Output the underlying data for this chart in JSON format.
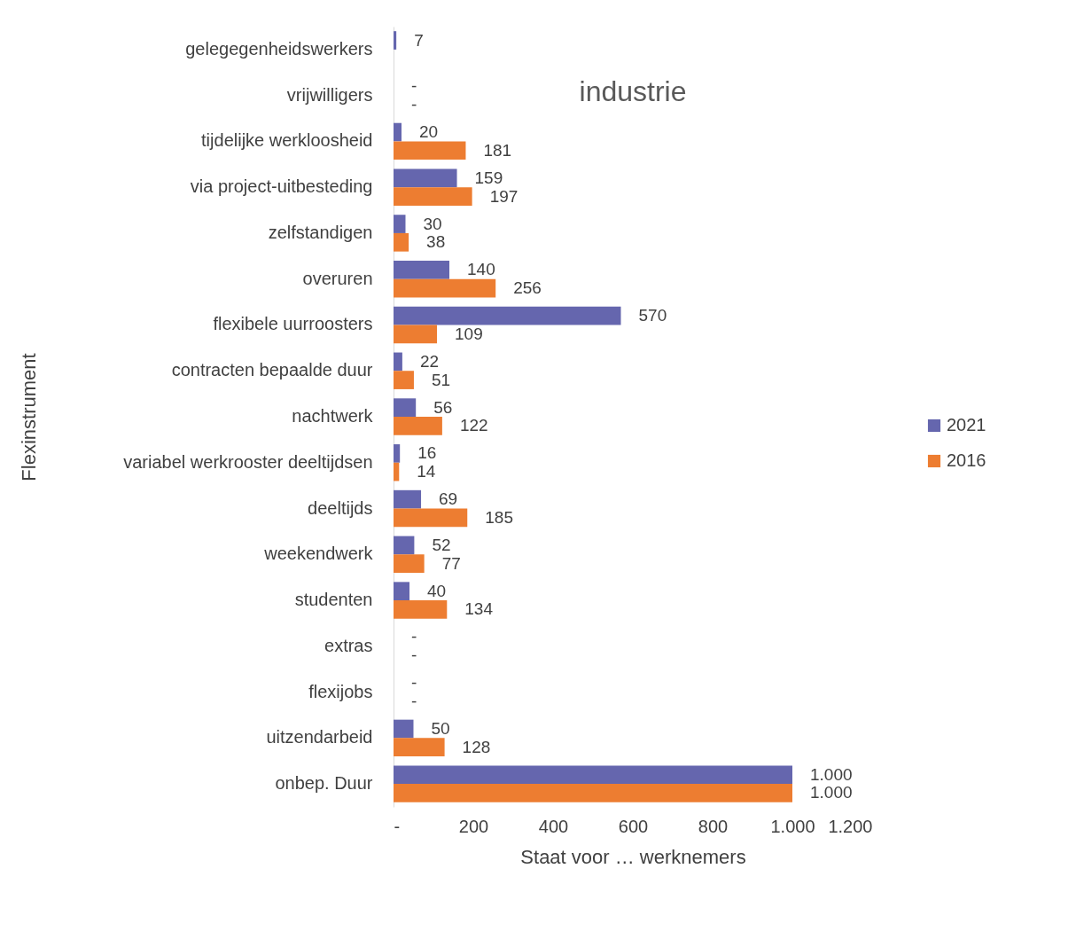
{
  "chart_data": {
    "type": "bar",
    "orientation": "horizontal",
    "title": "industrie",
    "xlabel": "Staat voor … werknemers",
    "ylabel": "Flexinstrument",
    "categories": [
      "gelegegenheidswerkers",
      "vrijwilligers",
      "tijdelijke werkloosheid",
      "via project-uitbesteding",
      "zelfstandigen",
      "overuren",
      "flexibele uurroosters",
      "contracten bepaalde duur",
      "nachtwerk",
      "variabel werkrooster deeltijdsen",
      "deeltijds",
      "weekendwerk",
      "studenten",
      "extras",
      "flexijobs",
      "uitzendarbeid",
      "onbep. Duur"
    ],
    "series": [
      {
        "name": "2021",
        "color": "#6566ae",
        "values": [
          7,
          0,
          20,
          159,
          30,
          140,
          570,
          22,
          56,
          16,
          69,
          52,
          40,
          0,
          0,
          50,
          1000
        ],
        "value_labels": [
          "7",
          "-",
          "20",
          "159",
          "30",
          "140",
          "570",
          "22",
          "56",
          "16",
          "69",
          "52",
          "40",
          "-",
          "-",
          "50",
          "1.000"
        ]
      },
      {
        "name": "2016",
        "color": "#ed7d31",
        "values": [
          null,
          0,
          181,
          197,
          38,
          256,
          109,
          51,
          122,
          14,
          185,
          77,
          134,
          0,
          0,
          128,
          1000
        ],
        "value_labels": [
          null,
          "-",
          "181",
          "197",
          "38",
          "256",
          "109",
          "51",
          "122",
          "14",
          "185",
          "77",
          "134",
          "-",
          "-",
          "128",
          "1.000"
        ]
      }
    ],
    "xlim": [
      0,
      1200
    ],
    "xticks": [
      {
        "value": 0,
        "label": "-"
      },
      200,
      400,
      600,
      800,
      {
        "value": 1000,
        "label": "1.000"
      },
      {
        "value": 1200,
        "label": "1.200"
      }
    ],
    "grid": false,
    "legend": "right"
  }
}
